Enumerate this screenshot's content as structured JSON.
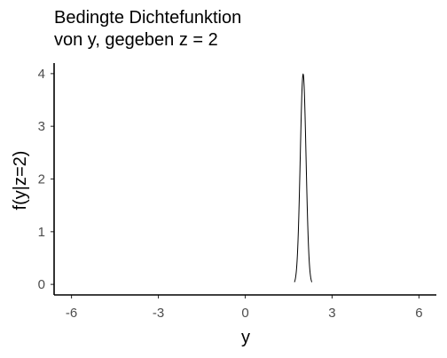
{
  "chart_data": {
    "type": "line",
    "title_line1": "Bedingte Dichtefunktion",
    "title_line2": "von y, gegeben z = 2",
    "xlabel": "y",
    "ylabel": "f(y|z=2)",
    "xlim": [
      -6.6,
      6.6
    ],
    "ylim": [
      -0.2,
      4.2
    ],
    "x_ticks": [
      -6,
      -3,
      0,
      3,
      6
    ],
    "x_tick_labels": [
      "-6",
      "-3",
      "0",
      "3",
      "6"
    ],
    "y_ticks": [
      0,
      1,
      2,
      3,
      4
    ],
    "y_tick_labels": [
      "0",
      "1",
      "2",
      "3",
      "4"
    ],
    "grid": false,
    "series": [
      {
        "color": "#000000",
        "distribution": "normal",
        "mean": 2,
        "sd": 0.1,
        "x_range": [
          1.7,
          2.3
        ]
      }
    ]
  }
}
